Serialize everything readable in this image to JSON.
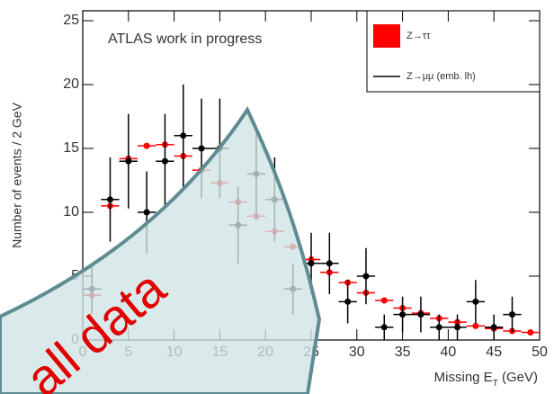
{
  "chart_data": {
    "type": "line",
    "annotation": "ATLAS work in progress",
    "x_label": [
      "Missing E",
      "T",
      " (GeV)"
    ],
    "y_label": "Number of events / 2 GeV",
    "overlay_text": "all data",
    "x": [
      1,
      3,
      5,
      7,
      9,
      11,
      13,
      15,
      17,
      19,
      21,
      23,
      25,
      27,
      29,
      31,
      33,
      35,
      37,
      39,
      41,
      43,
      45,
      47,
      49
    ],
    "series": [
      {
        "name": "Z→ττ",
        "color": "#ff0000",
        "style": "box",
        "values": [
          3.5,
          10.5,
          14.2,
          15.2,
          15.3,
          14.4,
          13.3,
          12.3,
          10.8,
          9.7,
          8.5,
          7.3,
          6.3,
          5.3,
          4.5,
          3.7,
          3.1,
          2.5,
          2.1,
          1.7,
          1.4,
          1.1,
          0.9,
          0.7,
          0.6
        ]
      },
      {
        "name": "Z→μμ (emb. lh)",
        "color": "#000000",
        "style": "line",
        "values": [
          4,
          11,
          14,
          10,
          14,
          16,
          15,
          15,
          9,
          13,
          11,
          4,
          6,
          6,
          3,
          5,
          1,
          2,
          2,
          1,
          1,
          3,
          1,
          2,
          null
        ],
        "errors": [
          2,
          3.3,
          3.7,
          3.2,
          3.7,
          4,
          3.9,
          3.9,
          3,
          3.6,
          3.3,
          2,
          2.4,
          2.4,
          1.7,
          2.2,
          1,
          1.4,
          1.4,
          1,
          1,
          1.7,
          1,
          1.4,
          null
        ]
      }
    ],
    "xlim": [
      0,
      50
    ],
    "xticks": [
      0,
      5,
      10,
      15,
      20,
      25,
      30,
      35,
      40,
      45,
      50
    ],
    "ylim": [
      0,
      25
    ],
    "yticks": [
      0,
      5,
      10,
      15,
      20,
      25
    ],
    "legend": "top-right"
  }
}
